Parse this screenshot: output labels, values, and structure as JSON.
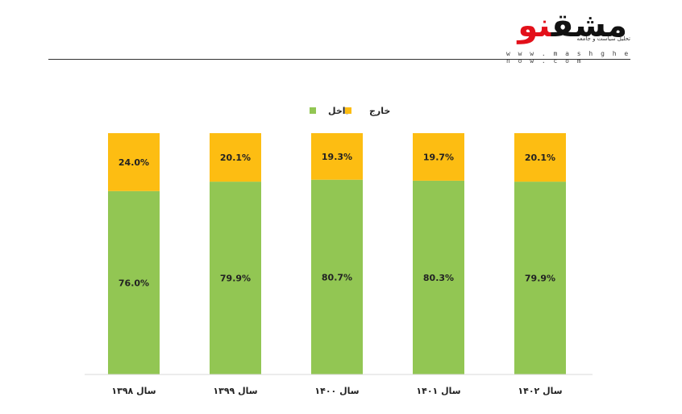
{
  "brand": {
    "name_red": "نو",
    "name_black": "مشق",
    "tagline": "تحلیل سیاست و جامعه",
    "url": "w w w . m a s h g h e n o w . c o m",
    "accent_color": "#e3101a"
  },
  "chart_data": {
    "type": "bar",
    "stacked": true,
    "percent_stacked": true,
    "title": "",
    "xlabel": "",
    "ylabel": "",
    "ylim": [
      0,
      100
    ],
    "grid": false,
    "legend_position": "top-center",
    "categories": [
      "سال ۱۳۹۸",
      "سال ۱۳۹۹",
      "سال ۱۴۰۰",
      "سال ۱۴۰۱",
      "سال ۱۴۰۲"
    ],
    "series": [
      {
        "name": "داخل",
        "color": "#92c653",
        "values": [
          76.0,
          79.9,
          80.7,
          80.3,
          79.9
        ],
        "labels": [
          "76.0%",
          "79.9%",
          "80.7%",
          "80.3%",
          "79.9%"
        ]
      },
      {
        "name": "خارج",
        "color": "#fdbd12",
        "values": [
          24.0,
          20.1,
          19.3,
          19.7,
          20.1
        ],
        "labels": [
          "24.0%",
          "20.1%",
          "19.3%",
          "19.7%",
          "20.1%"
        ]
      }
    ]
  }
}
